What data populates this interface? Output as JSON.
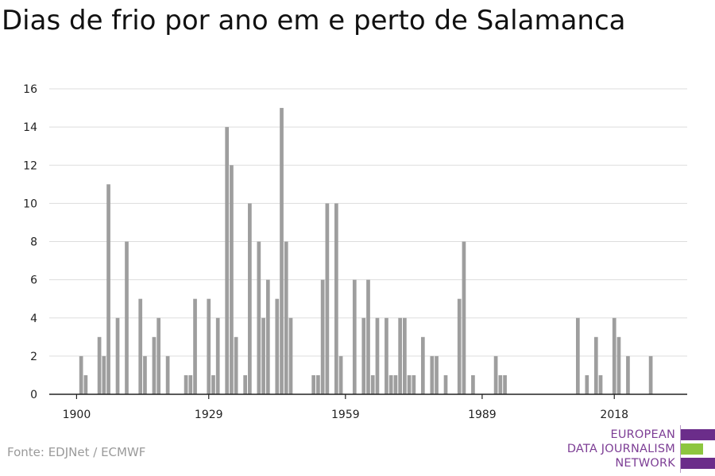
{
  "title": "Dias de frio por ano em e perto de Salamanca",
  "source": "Fonte: EDJNet / ECMWF",
  "logo": {
    "lines": [
      "EUROPEAN",
      "DATA JOURNALISM",
      "NETWORK"
    ],
    "colors": {
      "purple": "#6b2d8a",
      "green": "#8dc63f",
      "text": "#7d3e95"
    }
  },
  "chart_data": {
    "type": "bar",
    "title": "Dias de frio por ano em e perto de Salamanca",
    "xlabel": "",
    "ylabel": "",
    "ylim": [
      0,
      16
    ],
    "yticks": [
      0,
      2,
      4,
      6,
      8,
      10,
      12,
      14,
      16
    ],
    "xticks": [
      1900,
      1929,
      1959,
      1989,
      2018
    ],
    "xlim": [
      1894,
      2034
    ],
    "bar_color": "#9e9e9e",
    "grid": true,
    "x": [
      1901,
      1902,
      1905,
      1906,
      1907,
      1909,
      1911,
      1914,
      1915,
      1917,
      1918,
      1920,
      1924,
      1925,
      1926,
      1929,
      1930,
      1931,
      1933,
      1934,
      1935,
      1937,
      1938,
      1940,
      1941,
      1942,
      1944,
      1945,
      1946,
      1947,
      1952,
      1953,
      1954,
      1955,
      1957,
      1958,
      1961,
      1963,
      1964,
      1965,
      1966,
      1968,
      1969,
      1970,
      1971,
      1972,
      1973,
      1974,
      1976,
      1978,
      1979,
      1981,
      1984,
      1985,
      1987,
      1992,
      1993,
      1994,
      2010,
      2012,
      2014,
      2015,
      2018,
      2019,
      2021,
      2026
    ],
    "values": [
      2,
      1,
      3,
      2,
      11,
      4,
      8,
      5,
      2,
      3,
      4,
      2,
      1,
      1,
      5,
      5,
      1,
      4,
      14,
      12,
      3,
      1,
      10,
      8,
      4,
      6,
      5,
      15,
      8,
      4,
      1,
      1,
      6,
      10,
      10,
      2,
      6,
      4,
      6,
      1,
      4,
      4,
      1,
      1,
      4,
      4,
      1,
      1,
      3,
      2,
      2,
      1,
      5,
      8,
      1,
      2,
      1,
      1,
      4,
      1,
      3,
      1,
      4,
      3,
      2,
      2
    ]
  }
}
